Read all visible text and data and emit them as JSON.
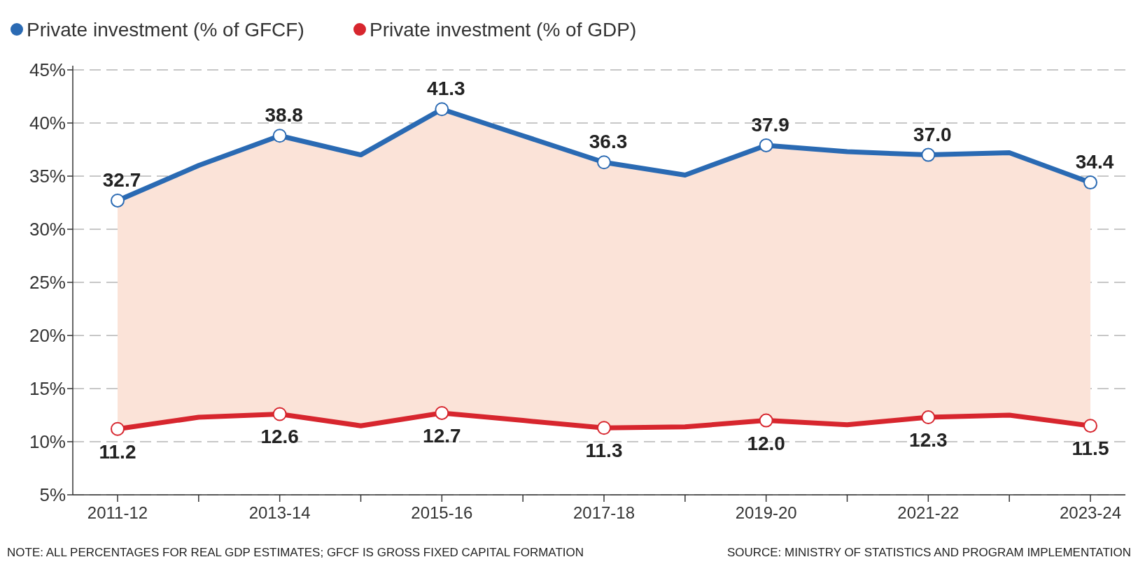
{
  "chart_data": {
    "type": "line",
    "categories": [
      "2011-12",
      null,
      "2013-14",
      null,
      "2015-16",
      null,
      "2017-18",
      null,
      "2019-20",
      null,
      "2021-22",
      null,
      "2023-24"
    ],
    "series": [
      {
        "type": "area",
        "name": "Private investment (% of GFCF)",
        "color": "#2a6ab3",
        "values": [
          32.7,
          36.0,
          38.8,
          37.0,
          41.3,
          38.8,
          36.3,
          35.1,
          37.9,
          37.3,
          37.0,
          37.2,
          34.4
        ],
        "value_labels": [
          "32.7",
          null,
          "38.8",
          null,
          "41.3",
          null,
          "36.3",
          null,
          "37.9",
          null,
          "37.0",
          null,
          "34.4"
        ]
      },
      {
        "name": "Private investment (% of GDP)",
        "color": "#d7262e",
        "values": [
          11.2,
          12.3,
          12.6,
          11.5,
          12.7,
          12.0,
          11.3,
          11.4,
          12.0,
          11.6,
          12.3,
          12.5,
          11.5
        ],
        "value_labels": [
          "11.2",
          null,
          "12.6",
          null,
          "12.7",
          null,
          "11.3",
          null,
          "12.0",
          null,
          "12.3",
          null,
          "11.5"
        ]
      }
    ],
    "ylim": [
      5,
      45
    ],
    "yticks": [
      {
        "value": 5,
        "label": "5%"
      },
      {
        "value": 10,
        "label": "10%"
      },
      {
        "value": 15,
        "label": "15%"
      },
      {
        "value": 20,
        "label": "20%"
      },
      {
        "value": 25,
        "label": "25%"
      },
      {
        "value": 30,
        "label": "30%"
      },
      {
        "value": 35,
        "label": "35%"
      },
      {
        "value": 40,
        "label": "40%"
      },
      {
        "value": 45,
        "label": "45%"
      }
    ],
    "grid": "y",
    "legend": "top left",
    "marker": "circle",
    "line_style": "solid",
    "annotations": [
      "NOTE: ALL PERCENTAGES FOR REAL GDP ESTIMATES; GFCF IS GROSS FIXED CAPITAL FORMATION",
      "SOURCE: MINISTRY OF STATISTICS AND PROGRAM IMPLEMENTATION"
    ]
  }
}
